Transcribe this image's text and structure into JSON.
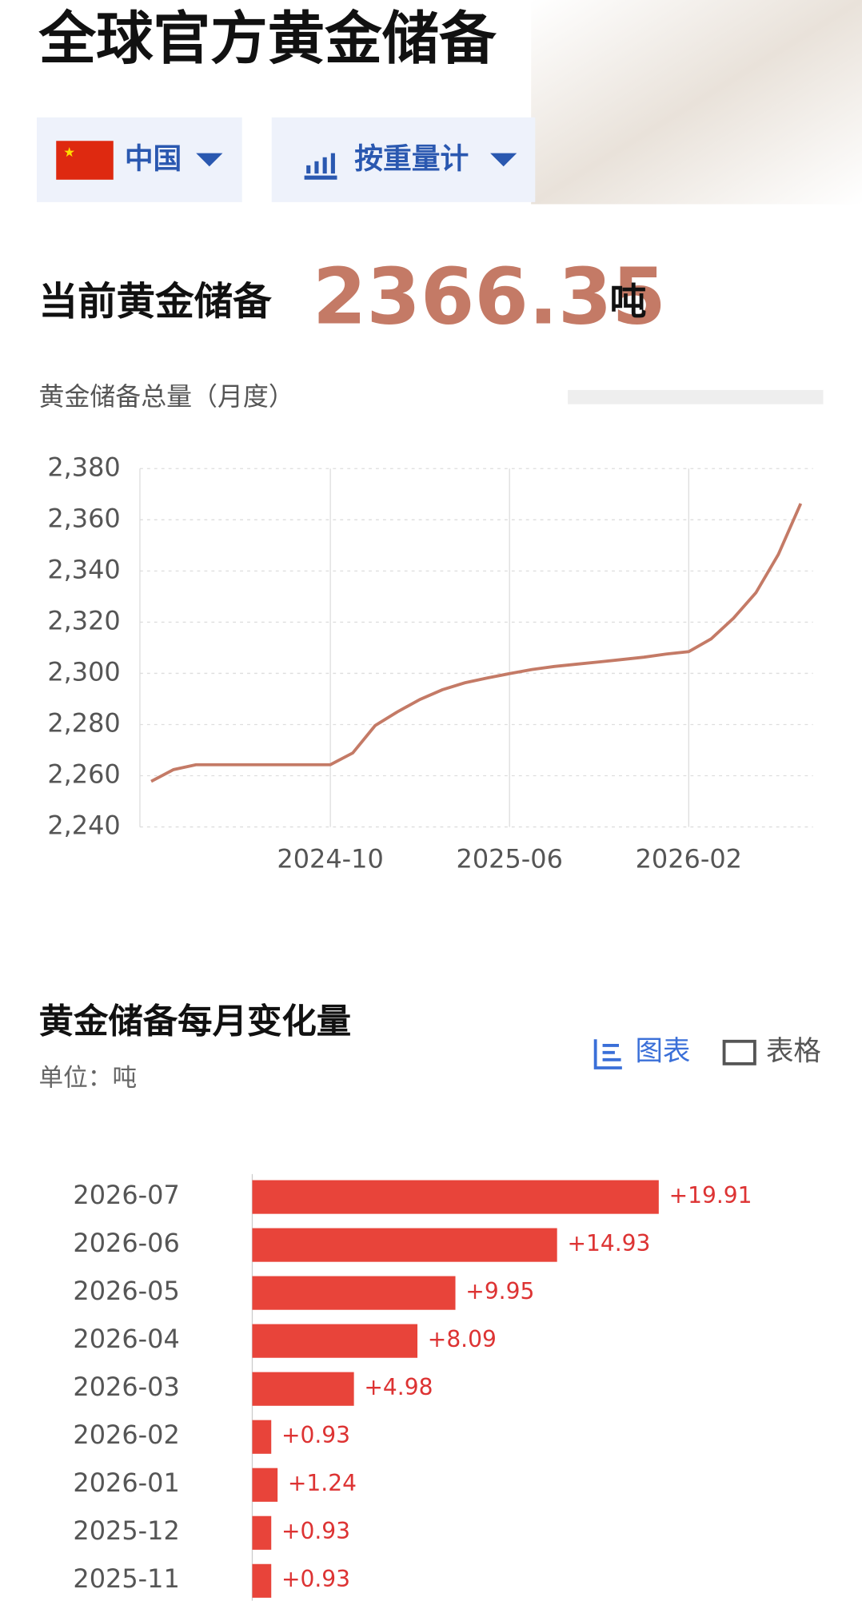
{
  "header": {
    "title": "全球官方黄金储备",
    "country": "中国",
    "measure": "按重量计",
    "current_label": "当前黄金储备",
    "current_value": 2366.35,
    "current_unit": "吨"
  },
  "section": {
    "title": "黄金储备每月变化量",
    "unit": "单位：吨",
    "tabs": [
      "图表",
      "表格"
    ]
  },
  "chart_data": [
    {
      "type": "line",
      "title": "黄金储备总量（月度）",
      "color": "#c47a66",
      "x": [
        "2024-02",
        "2024-03",
        "2024-04",
        "2024-05",
        "2024-06",
        "2024-07",
        "2024-08",
        "2024-09",
        "2024-10",
        "2024-11",
        "2024-12",
        "2025-01",
        "2025-02",
        "2025-03",
        "2025-04",
        "2025-05",
        "2025-06",
        "2025-07",
        "2025-08",
        "2025-09",
        "2025-10",
        "2025-11",
        "2025-12",
        "2026-01",
        "2026-02",
        "2026-03",
        "2026-04",
        "2026-05",
        "2026-06",
        "2026-07"
      ],
      "values": [
        2257.8,
        2262.4,
        2264.3,
        2264.3,
        2264.3,
        2264.3,
        2264.3,
        2264.3,
        2264.3,
        2268.9,
        2279.6,
        2285.0,
        2289.8,
        2293.6,
        2296.3,
        2298.2,
        2299.9,
        2301.5,
        2302.7,
        2303.6,
        2304.46,
        2305.39,
        2306.32,
        2307.56,
        2308.49,
        2313.47,
        2321.56,
        2331.51,
        2346.44,
        2366.35
      ],
      "ylim": [
        2240,
        2380
      ],
      "yticks": [
        {
          "value": 2240,
          "label": "2,240"
        },
        {
          "value": 2260,
          "label": "2,260"
        },
        {
          "value": 2280,
          "label": "2,280"
        },
        {
          "value": 2300,
          "label": "2,300"
        },
        {
          "value": 2320,
          "label": "2,320"
        },
        {
          "value": 2340,
          "label": "2,340"
        },
        {
          "value": 2360,
          "label": "2,360"
        },
        {
          "value": 2380,
          "label": "2,380"
        }
      ],
      "xticks": [
        "2024-10",
        "2025-06",
        "2026-02"
      ],
      "grid": true
    },
    {
      "type": "hbar",
      "color": "#e8443a",
      "categories": [
        "2026-07",
        "2026-06",
        "2026-05",
        "2026-04",
        "2026-03",
        "2026-02",
        "2026-01",
        "2025-12",
        "2025-11"
      ],
      "values": [
        19.91,
        14.93,
        9.95,
        8.09,
        4.98,
        0.93,
        1.24,
        0.93,
        0.93
      ],
      "value_labels": [
        "+19.91",
        "+14.93",
        "+9.95",
        "+8.09",
        "+4.98",
        "+0.93",
        "+1.24",
        "+0.93",
        "+0.93"
      ]
    }
  ]
}
